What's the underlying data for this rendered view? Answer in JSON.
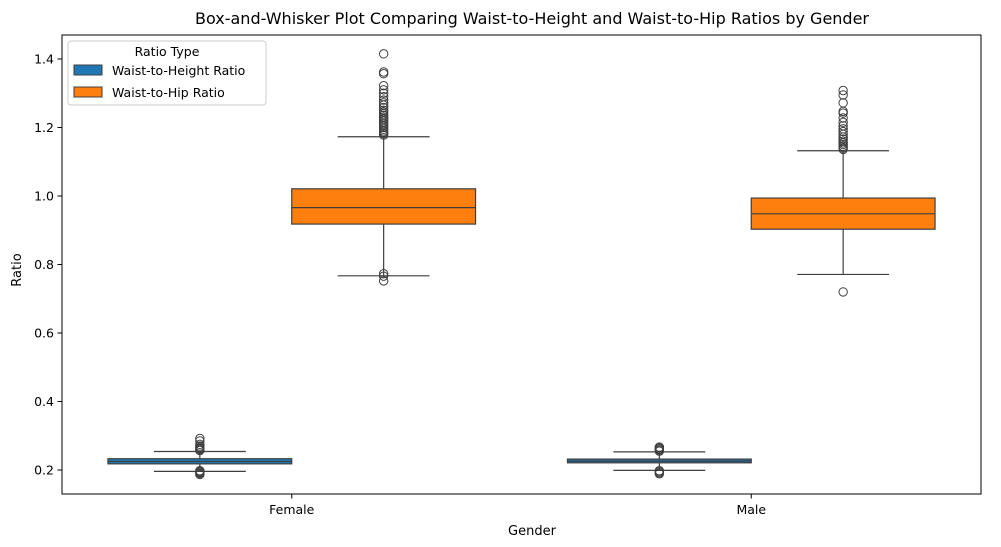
{
  "chart_data": {
    "type": "box",
    "title": "Box-and-Whisker Plot Comparing Waist-to-Height and Waist-to-Hip Ratios by Gender",
    "xlabel": "Gender",
    "ylabel": "Ratio",
    "categories": [
      "Female",
      "Male"
    ],
    "ylim": [
      0.13,
      1.47
    ],
    "yticks": [
      0.2,
      0.4,
      0.6,
      0.8,
      1.0,
      1.2,
      1.4
    ],
    "ytick_labels": [
      "0.2",
      "0.4",
      "0.6",
      "0.8",
      "1.0",
      "1.2",
      "1.4"
    ],
    "grid": false,
    "legend": {
      "title": "Ratio Type",
      "placement": "top-left"
    },
    "series": [
      {
        "name": "Waist-to-Height Ratio",
        "color": "#1f77b4",
        "boxes": [
          {
            "category": "Female",
            "whisker_low": 0.196,
            "q1": 0.218,
            "median": 0.225,
            "q3": 0.233,
            "whisker_high": 0.254,
            "outliers": [
              0.187,
              0.19,
              0.193,
              0.196,
              0.198,
              0.257,
              0.26,
              0.263,
              0.266,
              0.27,
              0.275,
              0.285,
              0.292
            ]
          },
          {
            "category": "Male",
            "whisker_low": 0.199,
            "q1": 0.221,
            "median": 0.226,
            "q3": 0.232,
            "whisker_high": 0.253,
            "outliers": [
              0.189,
              0.192,
              0.195,
              0.198,
              0.255,
              0.258,
              0.261,
              0.264,
              0.267
            ]
          }
        ]
      },
      {
        "name": "Waist-to-Hip Ratio",
        "color": "#ff7f0e",
        "boxes": [
          {
            "category": "Female",
            "whisker_low": 0.767,
            "q1": 0.918,
            "median": 0.966,
            "q3": 1.021,
            "whisker_high": 1.173,
            "outliers": [
              0.752,
              0.766,
              0.773,
              1.178,
              1.182,
              1.186,
              1.19,
              1.195,
              1.2,
              1.205,
              1.21,
              1.215,
              1.22,
              1.225,
              1.23,
              1.235,
              1.24,
              1.245,
              1.25,
              1.258,
              1.265,
              1.272,
              1.28,
              1.29,
              1.3,
              1.31,
              1.322,
              1.357,
              1.362,
              1.415
            ]
          },
          {
            "category": "Male",
            "whisker_low": 0.771,
            "q1": 0.903,
            "median": 0.948,
            "q3": 0.994,
            "whisker_high": 1.132,
            "outliers": [
              0.72,
              1.136,
              1.14,
              1.145,
              1.15,
              1.155,
              1.16,
              1.166,
              1.172,
              1.18,
              1.188,
              1.196,
              1.205,
              1.215,
              1.228,
              1.242,
              1.247,
              1.272,
              1.295,
              1.308
            ]
          }
        ]
      }
    ]
  }
}
